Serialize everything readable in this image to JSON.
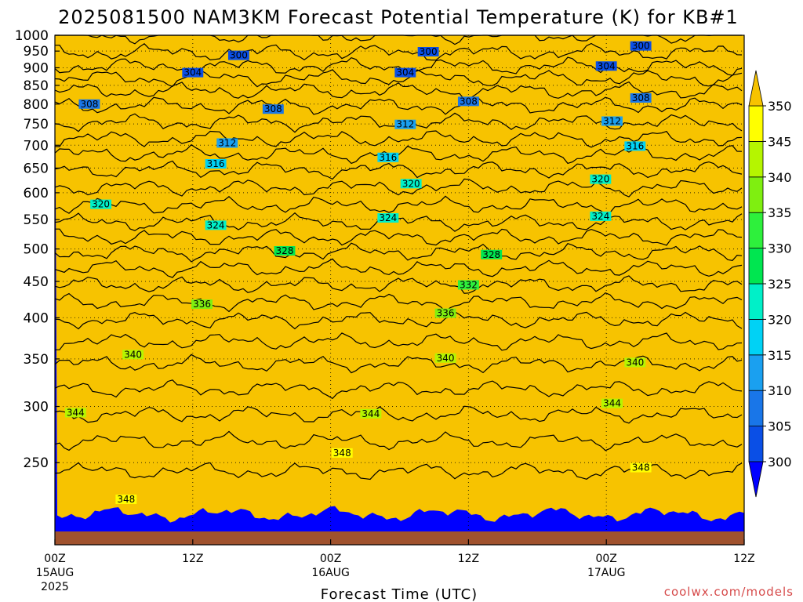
{
  "chart_data": {
    "type": "heatmap",
    "title": "2025081500 NAM3KM Forecast Potential Temperature (K) for KB#1",
    "xlabel": "Forecast Time (UTC)",
    "ylabel": "",
    "credit": "coolwx.com/models",
    "x_ticks": [
      {
        "hour": 0,
        "label": "00Z",
        "sub1": "15AUG",
        "sub2": "2025"
      },
      {
        "hour": 12,
        "label": "12Z",
        "sub1": "",
        "sub2": ""
      },
      {
        "hour": 24,
        "label": "00Z",
        "sub1": "16AUG",
        "sub2": ""
      },
      {
        "hour": 36,
        "label": "12Z",
        "sub1": "",
        "sub2": ""
      },
      {
        "hour": 48,
        "label": "00Z",
        "sub1": "17AUG",
        "sub2": ""
      },
      {
        "hour": 60,
        "label": "12Z",
        "sub1": "",
        "sub2": ""
      }
    ],
    "x_range_hours": [
      0,
      60
    ],
    "y_axis": "pressure (hPa)",
    "y_range": [
      1000,
      200
    ],
    "y_scale": "log",
    "y_ticks": [
      250,
      300,
      350,
      400,
      450,
      500,
      550,
      600,
      650,
      700,
      750,
      800,
      850,
      900,
      950,
      1000
    ],
    "grid": "dotted",
    "colorbar": {
      "levels": [
        300,
        305,
        310,
        315,
        320,
        325,
        330,
        335,
        340,
        345,
        350
      ],
      "colors": [
        "#0000ff",
        "#0a4fe6",
        "#1976e8",
        "#1aa0f0",
        "#00d2f5",
        "#00f0c8",
        "#00e650",
        "#2ef03c",
        "#7fef10",
        "#b5f500",
        "#ffff00",
        "#f7c300"
      ],
      "extend": "both"
    },
    "profile": {
      "pressures": [
        1000,
        950,
        900,
        850,
        800,
        750,
        700,
        650,
        600,
        550,
        500,
        450,
        400,
        350,
        300,
        250,
        200
      ],
      "theta_mean": [
        300.2,
        301.8,
        304.2,
        307.2,
        309.8,
        312.2,
        314.8,
        317.8,
        320.6,
        323.6,
        327.6,
        331.6,
        335.8,
        339.6,
        343.4,
        347.6,
        350.8
      ]
    },
    "contour_levels": [
      300,
      302,
      304,
      306,
      308,
      310,
      312,
      314,
      316,
      318,
      320,
      322,
      324,
      326,
      328,
      330,
      332,
      334,
      336,
      338,
      340,
      342,
      344,
      346,
      348
    ],
    "contour_labels": [
      {
        "value": "348",
        "hour": 6.2,
        "p": 222
      },
      {
        "value": "348",
        "hour": 25.0,
        "p": 258
      },
      {
        "value": "348",
        "hour": 51.0,
        "p": 246
      },
      {
        "value": "344",
        "hour": 1.8,
        "p": 294
      },
      {
        "value": "344",
        "hour": 27.5,
        "p": 293
      },
      {
        "value": "344",
        "hour": 48.5,
        "p": 303
      },
      {
        "value": "340",
        "hour": 6.8,
        "p": 355
      },
      {
        "value": "340",
        "hour": 34.0,
        "p": 351
      },
      {
        "value": "340",
        "hour": 50.5,
        "p": 346
      },
      {
        "value": "336",
        "hour": 12.8,
        "p": 418
      },
      {
        "value": "336",
        "hour": 34.0,
        "p": 406
      },
      {
        "value": "332",
        "hour": 36.0,
        "p": 445
      },
      {
        "value": "328",
        "hour": 20.0,
        "p": 497
      },
      {
        "value": "328",
        "hour": 38.0,
        "p": 491
      },
      {
        "value": "324",
        "hour": 14.0,
        "p": 540
      },
      {
        "value": "324",
        "hour": 29.0,
        "p": 553
      },
      {
        "value": "324",
        "hour": 47.5,
        "p": 556
      },
      {
        "value": "320",
        "hour": 4.0,
        "p": 578
      },
      {
        "value": "320",
        "hour": 31.0,
        "p": 618
      },
      {
        "value": "320",
        "hour": 47.5,
        "p": 627
      },
      {
        "value": "316",
        "hour": 14.0,
        "p": 659
      },
      {
        "value": "316",
        "hour": 29.0,
        "p": 673
      },
      {
        "value": "316",
        "hour": 50.5,
        "p": 698
      },
      {
        "value": "312",
        "hour": 15.0,
        "p": 705
      },
      {
        "value": "312",
        "hour": 30.5,
        "p": 749
      },
      {
        "value": "312",
        "hour": 48.5,
        "p": 757
      },
      {
        "value": "308",
        "hour": 3.0,
        "p": 800
      },
      {
        "value": "308",
        "hour": 19.0,
        "p": 787
      },
      {
        "value": "308",
        "hour": 36.0,
        "p": 807
      },
      {
        "value": "308",
        "hour": 51.0,
        "p": 816
      },
      {
        "value": "304",
        "hour": 12.0,
        "p": 886
      },
      {
        "value": "304",
        "hour": 30.5,
        "p": 886
      },
      {
        "value": "304",
        "hour": 48.0,
        "p": 905
      },
      {
        "value": "300",
        "hour": 16.0,
        "p": 937
      },
      {
        "value": "300",
        "hour": 32.5,
        "p": 948
      },
      {
        "value": "300",
        "hour": 51.0,
        "p": 966
      }
    ]
  }
}
